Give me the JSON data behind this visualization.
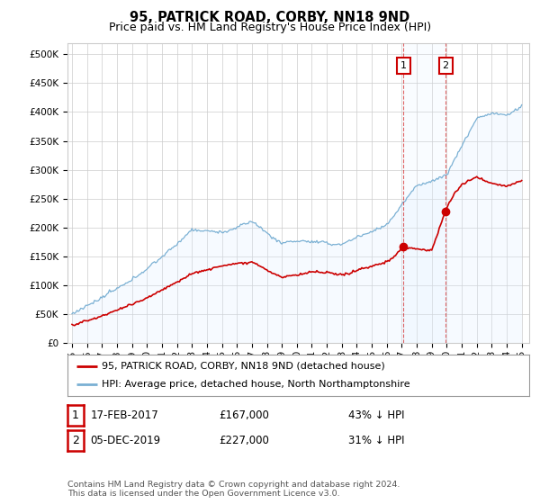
{
  "title": "95, PATRICK ROAD, CORBY, NN18 9ND",
  "subtitle": "Price paid vs. HM Land Registry's House Price Index (HPI)",
  "ytick_values": [
    0,
    50000,
    100000,
    150000,
    200000,
    250000,
    300000,
    350000,
    400000,
    450000,
    500000
  ],
  "ylim": [
    0,
    520000
  ],
  "xlim_start": 1994.7,
  "xlim_end": 2025.5,
  "hpi_color": "#7ab0d4",
  "hpi_fill_color": "#ddeeff",
  "sale_color": "#cc0000",
  "annotation_box_color": "#cc0000",
  "sale1_x": 2017.12,
  "sale1_y": 167000,
  "sale2_x": 2019.92,
  "sale2_y": 227000,
  "legend_label1": "95, PATRICK ROAD, CORBY, NN18 9ND (detached house)",
  "legend_label2": "HPI: Average price, detached house, North Northamptonshire",
  "annotation1_date": "17-FEB-2017",
  "annotation1_price": "£167,000",
  "annotation1_pct": "43% ↓ HPI",
  "annotation2_date": "05-DEC-2019",
  "annotation2_price": "£227,000",
  "annotation2_pct": "31% ↓ HPI",
  "footnote": "Contains HM Land Registry data © Crown copyright and database right 2024.\nThis data is licensed under the Open Government Licence v3.0.",
  "background_color": "#ffffff",
  "grid_color": "#cccccc",
  "title_fontsize": 10.5,
  "subtitle_fontsize": 9,
  "tick_fontsize": 7.5
}
